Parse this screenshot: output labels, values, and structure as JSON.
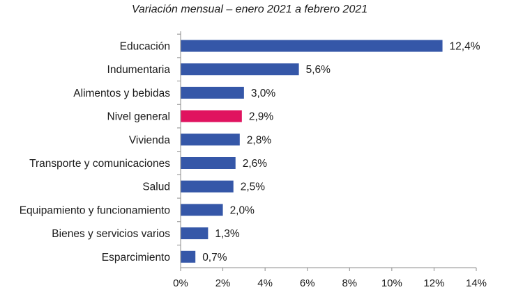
{
  "chart_data": {
    "type": "bar",
    "orientation": "horizontal",
    "title": "Variación mensual – enero 2021 a febrero 2021",
    "categories": [
      "Educación",
      "Indumentaria",
      "Alimentos y bebidas",
      "Nivel general",
      "Vivienda",
      "Transporte y comunicaciones",
      "Salud",
      "Equipamiento y funcionamiento",
      "Bienes y servicios varios",
      "Esparcimiento"
    ],
    "values": [
      12.4,
      5.6,
      3.0,
      2.9,
      2.8,
      2.6,
      2.5,
      2.0,
      1.3,
      0.7
    ],
    "value_labels": [
      "12,4%",
      "5,6%",
      "3,0%",
      "2,9%",
      "2,8%",
      "2,6%",
      "2,5%",
      "2,0%",
      "1,3%",
      "0,7%"
    ],
    "highlight_index": 3,
    "xlim": [
      0,
      14
    ],
    "xticks": [
      0,
      2,
      4,
      6,
      8,
      10,
      12,
      14
    ],
    "xtick_labels": [
      "0%",
      "2%",
      "4%",
      "6%",
      "8%",
      "10%",
      "12%",
      "14%"
    ],
    "xlabel": "",
    "ylabel": "",
    "grid": false,
    "colors": {
      "bar": "#3557a8",
      "highlight": "#e0135f",
      "axis": "#8c8c8c"
    }
  }
}
